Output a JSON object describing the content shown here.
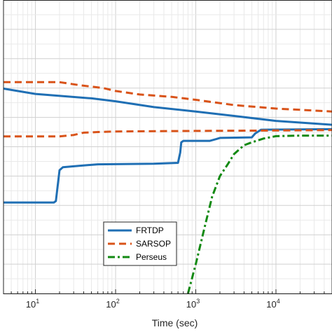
{
  "chart_data": {
    "type": "line",
    "xlabel": "Time (sec)",
    "x_scale": "log",
    "xlim": [
      4,
      50000
    ],
    "ylim": [
      0,
      10
    ],
    "grid": true,
    "x_ticks": [
      {
        "base": "10",
        "exp": "1",
        "value": 10
      },
      {
        "base": "10",
        "exp": "2",
        "value": 100
      },
      {
        "base": "10",
        "exp": "3",
        "value": 1000
      },
      {
        "base": "10",
        "exp": "4",
        "value": 10000
      }
    ],
    "legend_position": "bottom-center",
    "series": [
      {
        "name": "FRTDP",
        "color": "#1f6fb4",
        "dash": "solid",
        "bands": [
          {
            "points": [
              [
                4,
                6.98
              ],
              [
                10,
                6.8
              ],
              [
                50,
                6.65
              ],
              [
                100,
                6.55
              ],
              [
                300,
                6.35
              ],
              [
                1000,
                6.2
              ],
              [
                3000,
                6.05
              ],
              [
                10000,
                5.88
              ],
              [
                50000,
                5.75
              ]
            ]
          },
          {
            "points": [
              [
                4,
                3.1
              ],
              [
                17,
                3.1
              ],
              [
                18,
                3.15
              ],
              [
                19,
                3.7
              ],
              [
                20,
                4.2
              ],
              [
                22,
                4.3
              ],
              [
                35,
                4.35
              ],
              [
                60,
                4.4
              ],
              [
                300,
                4.42
              ],
              [
                600,
                4.45
              ],
              [
                640,
                4.8
              ],
              [
                660,
                5.15
              ],
              [
                700,
                5.2
              ],
              [
                1500,
                5.2
              ],
              [
                1800,
                5.26
              ],
              [
                2000,
                5.3
              ],
              [
                5000,
                5.32
              ],
              [
                5500,
                5.45
              ],
              [
                6500,
                5.58
              ],
              [
                50000,
                5.6
              ]
            ]
          }
        ]
      },
      {
        "name": "SARSOP",
        "color": "#d95319",
        "dash": "dashed",
        "bands": [
          {
            "points": [
              [
                4,
                7.2
              ],
              [
                20,
                7.2
              ],
              [
                35,
                7.1
              ],
              [
                70,
                7.0
              ],
              [
                100,
                6.9
              ],
              [
                200,
                6.78
              ],
              [
                500,
                6.7
              ],
              [
                1000,
                6.6
              ],
              [
                3000,
                6.42
              ],
              [
                10000,
                6.3
              ],
              [
                50000,
                6.2
              ]
            ]
          },
          {
            "points": [
              [
                4,
                5.35
              ],
              [
                20,
                5.35
              ],
              [
                30,
                5.4
              ],
              [
                40,
                5.48
              ],
              [
                60,
                5.5
              ],
              [
                100,
                5.52
              ],
              [
                1000,
                5.54
              ],
              [
                5000,
                5.55
              ],
              [
                50000,
                5.57
              ]
            ]
          }
        ]
      },
      {
        "name": "Perseus",
        "color": "#138a13",
        "dash": "dashdot",
        "bands": [
          {
            "points": [
              [
                800,
                0
              ],
              [
                1000,
                1.0
              ],
              [
                1300,
                2.3
              ],
              [
                1600,
                3.3
              ],
              [
                2000,
                4.0
              ],
              [
                2500,
                4.4
              ],
              [
                3000,
                4.75
              ],
              [
                4000,
                5.05
              ],
              [
                5000,
                5.15
              ],
              [
                7000,
                5.28
              ],
              [
                10000,
                5.36
              ],
              [
                20000,
                5.38
              ],
              [
                50000,
                5.38
              ]
            ]
          }
        ]
      }
    ]
  }
}
